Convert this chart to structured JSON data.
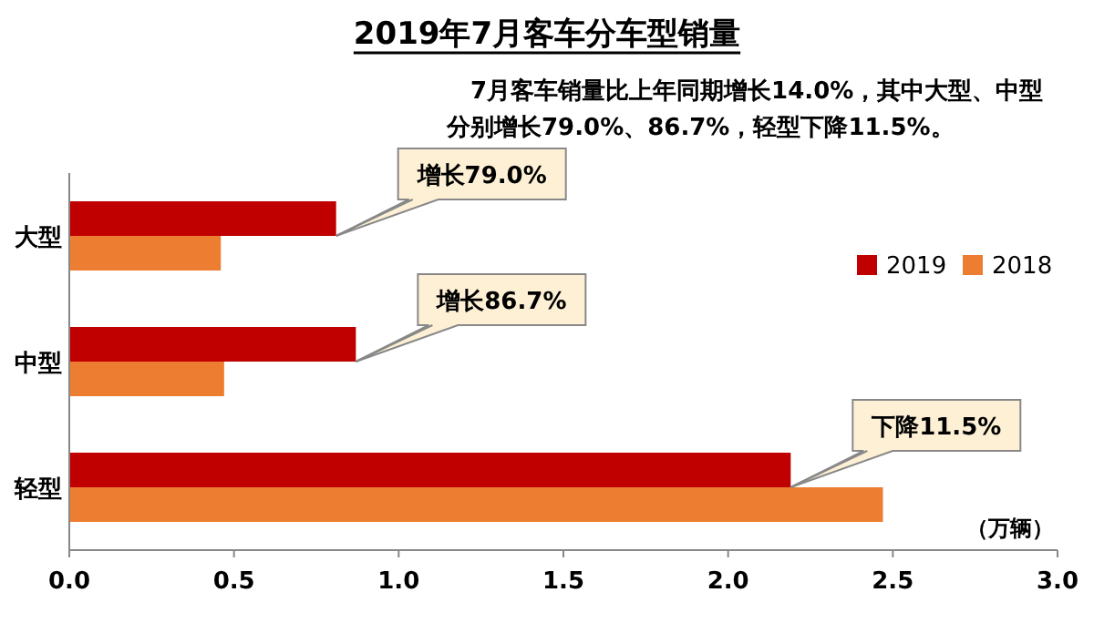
{
  "chart_data": {
    "type": "bar",
    "orientation": "horizontal",
    "title": "2019年7月客车分车型销量",
    "subtitle": "7月客车销量比上年同期增长14.0%，其中大型、中型分别增长79.0%、86.7%，轻型下降11.5%。",
    "xlabel": "（万辆）",
    "categories": [
      "大型",
      "中型",
      "轻型"
    ],
    "series": [
      {
        "name": "2019",
        "color": "#c00000",
        "values": [
          0.81,
          0.87,
          2.19
        ]
      },
      {
        "name": "2018",
        "color": "#ed7d31",
        "values": [
          0.46,
          0.47,
          2.47
        ]
      }
    ],
    "xlim": [
      0,
      3
    ],
    "xticks": [
      {
        "value": 0,
        "label": "0.0"
      },
      {
        "value": 0.5,
        "label": "0.5"
      },
      {
        "value": 1,
        "label": "1.0"
      },
      {
        "value": 1.5,
        "label": "1.5"
      },
      {
        "value": 2,
        "label": "2.0"
      },
      {
        "value": 2.5,
        "label": "2.5"
      },
      {
        "value": 3,
        "label": "3.0"
      }
    ],
    "grid": false,
    "legend": "right",
    "annotations": [
      {
        "text": "增长79.0%",
        "x": 0.81,
        "y": "大型"
      },
      {
        "text": "增长86.7%",
        "x": 0.87,
        "y": "中型"
      },
      {
        "text": "下降11.5%",
        "x": 2.19,
        "y": "轻型"
      }
    ]
  }
}
